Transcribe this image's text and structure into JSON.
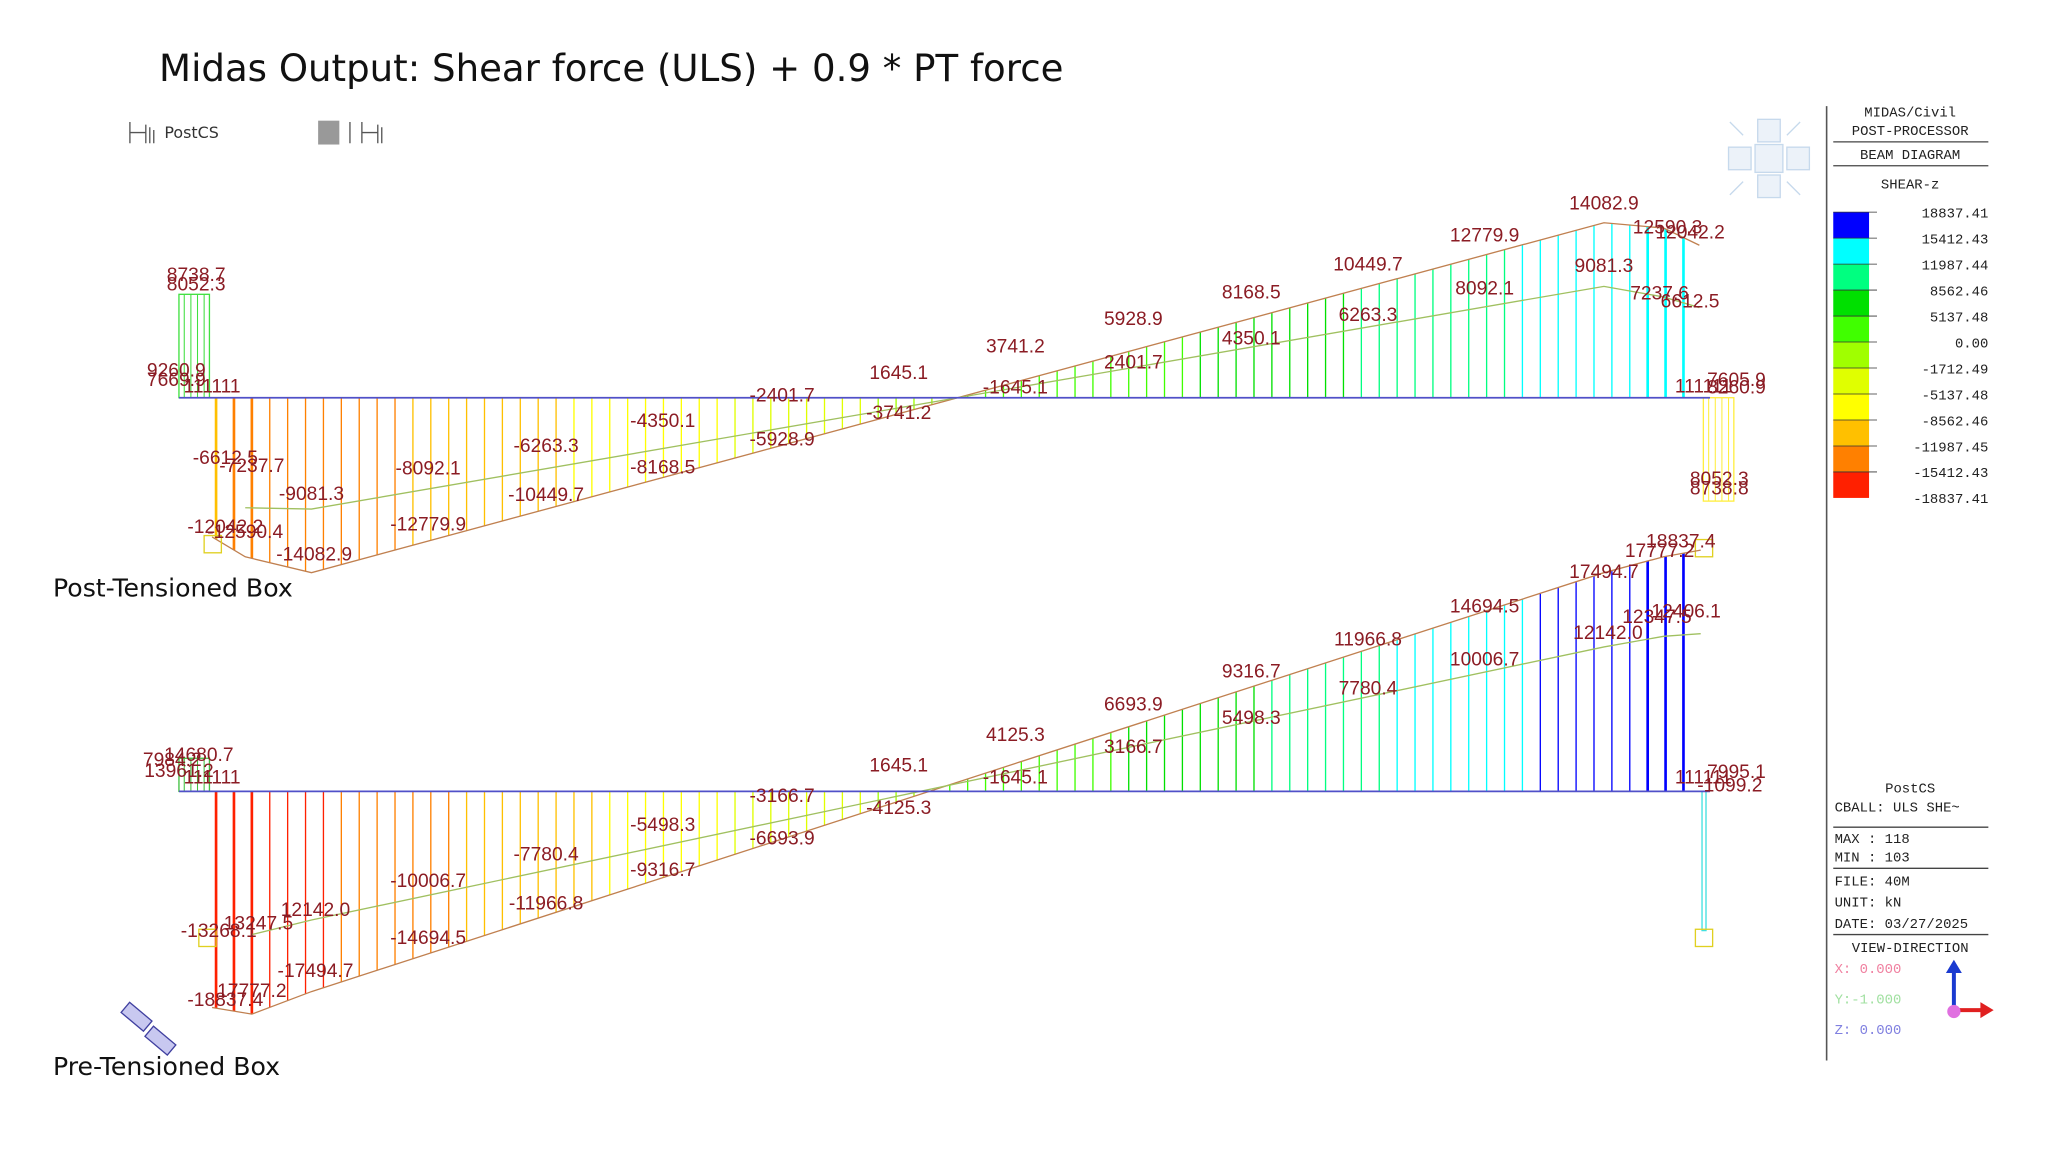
{
  "title": "Midas Output: Shear force (ULS) + 0.9 * PT force",
  "toolbar": {
    "stage": "PostCS"
  },
  "diagrams": [
    {
      "label": "Post-Tensioned Box",
      "values": [
        "8738.7",
        "8052.3",
        "9260.9",
        "7669.9",
        "111111",
        "-6612.5",
        "-7237.7",
        "-9081.3",
        "-12042.2",
        "-12590.4",
        "-14082.9",
        "-8092.1",
        "-12779.9",
        "-6263.3",
        "-10449.7",
        "-4350.1",
        "-8168.5",
        "-2401.7",
        "-5928.9",
        "1645.1",
        "-3741.2",
        "3741.2",
        "-1645.1",
        "5928.9",
        "2401.7",
        "8168.5",
        "4350.1",
        "10449.7",
        "6263.3",
        "12779.9",
        "8092.1",
        "14082.9",
        "9081.3",
        "12590.3",
        "12042.2",
        "7237.6",
        "6612.5",
        "111111",
        "7605.9",
        "8260.9",
        "8052.3",
        "8738.8"
      ]
    },
    {
      "label": "Pre-Tensioned Box",
      "values": [
        "7984.2",
        "14680.7",
        "13961.2",
        "111111",
        "-13268.1",
        "13247.5",
        "12142.0",
        "-17494.7",
        "-18837.4",
        "17777.2",
        "-10006.7",
        "-14694.5",
        "-7780.4",
        "-11966.8",
        "-5498.3",
        "-9316.7",
        "-3166.7",
        "-6693.9",
        "1645.1",
        "-4125.3",
        "4125.3",
        "-1645.1",
        "6693.9",
        "3166.7",
        "9316.7",
        "5498.3",
        "11966.8",
        "7780.4",
        "14694.5",
        "10006.7",
        "17494.7",
        "12142.0",
        "17777.2",
        "18837.4",
        "12347.5",
        "12406.1",
        "111111",
        "7995.1",
        "-1099.2"
      ]
    }
  ],
  "panel": {
    "header": [
      "MIDAS/Civil",
      "POST-PROCESSOR",
      "BEAM DIAGRAM",
      "SHEAR-z"
    ],
    "legend": [
      "18837.41",
      "15412.43",
      "11987.44",
      "8562.46",
      "5137.48",
      "0.00",
      "-1712.49",
      "-5137.48",
      "-8562.46",
      "-11987.45",
      "-15412.43",
      "-18837.41"
    ],
    "legend_colors": [
      "#0000ff",
      "#00ffff",
      "#00ff80",
      "#00e000",
      "#40ff00",
      "#a0ff00",
      "#e0ff00",
      "#ffff00",
      "#ffc000",
      "#ff8000",
      "#ff2000"
    ],
    "info": [
      "PostCS",
      "CBALL: ULS SHE~",
      "MAX : 118",
      "MIN : 103",
      "FILE: 40M",
      "UNIT: kN",
      "DATE: 03/27/2025",
      "VIEW-DIRECTION",
      "X: 0.000",
      "Y:-1.000",
      "Z: 0.000"
    ]
  }
}
